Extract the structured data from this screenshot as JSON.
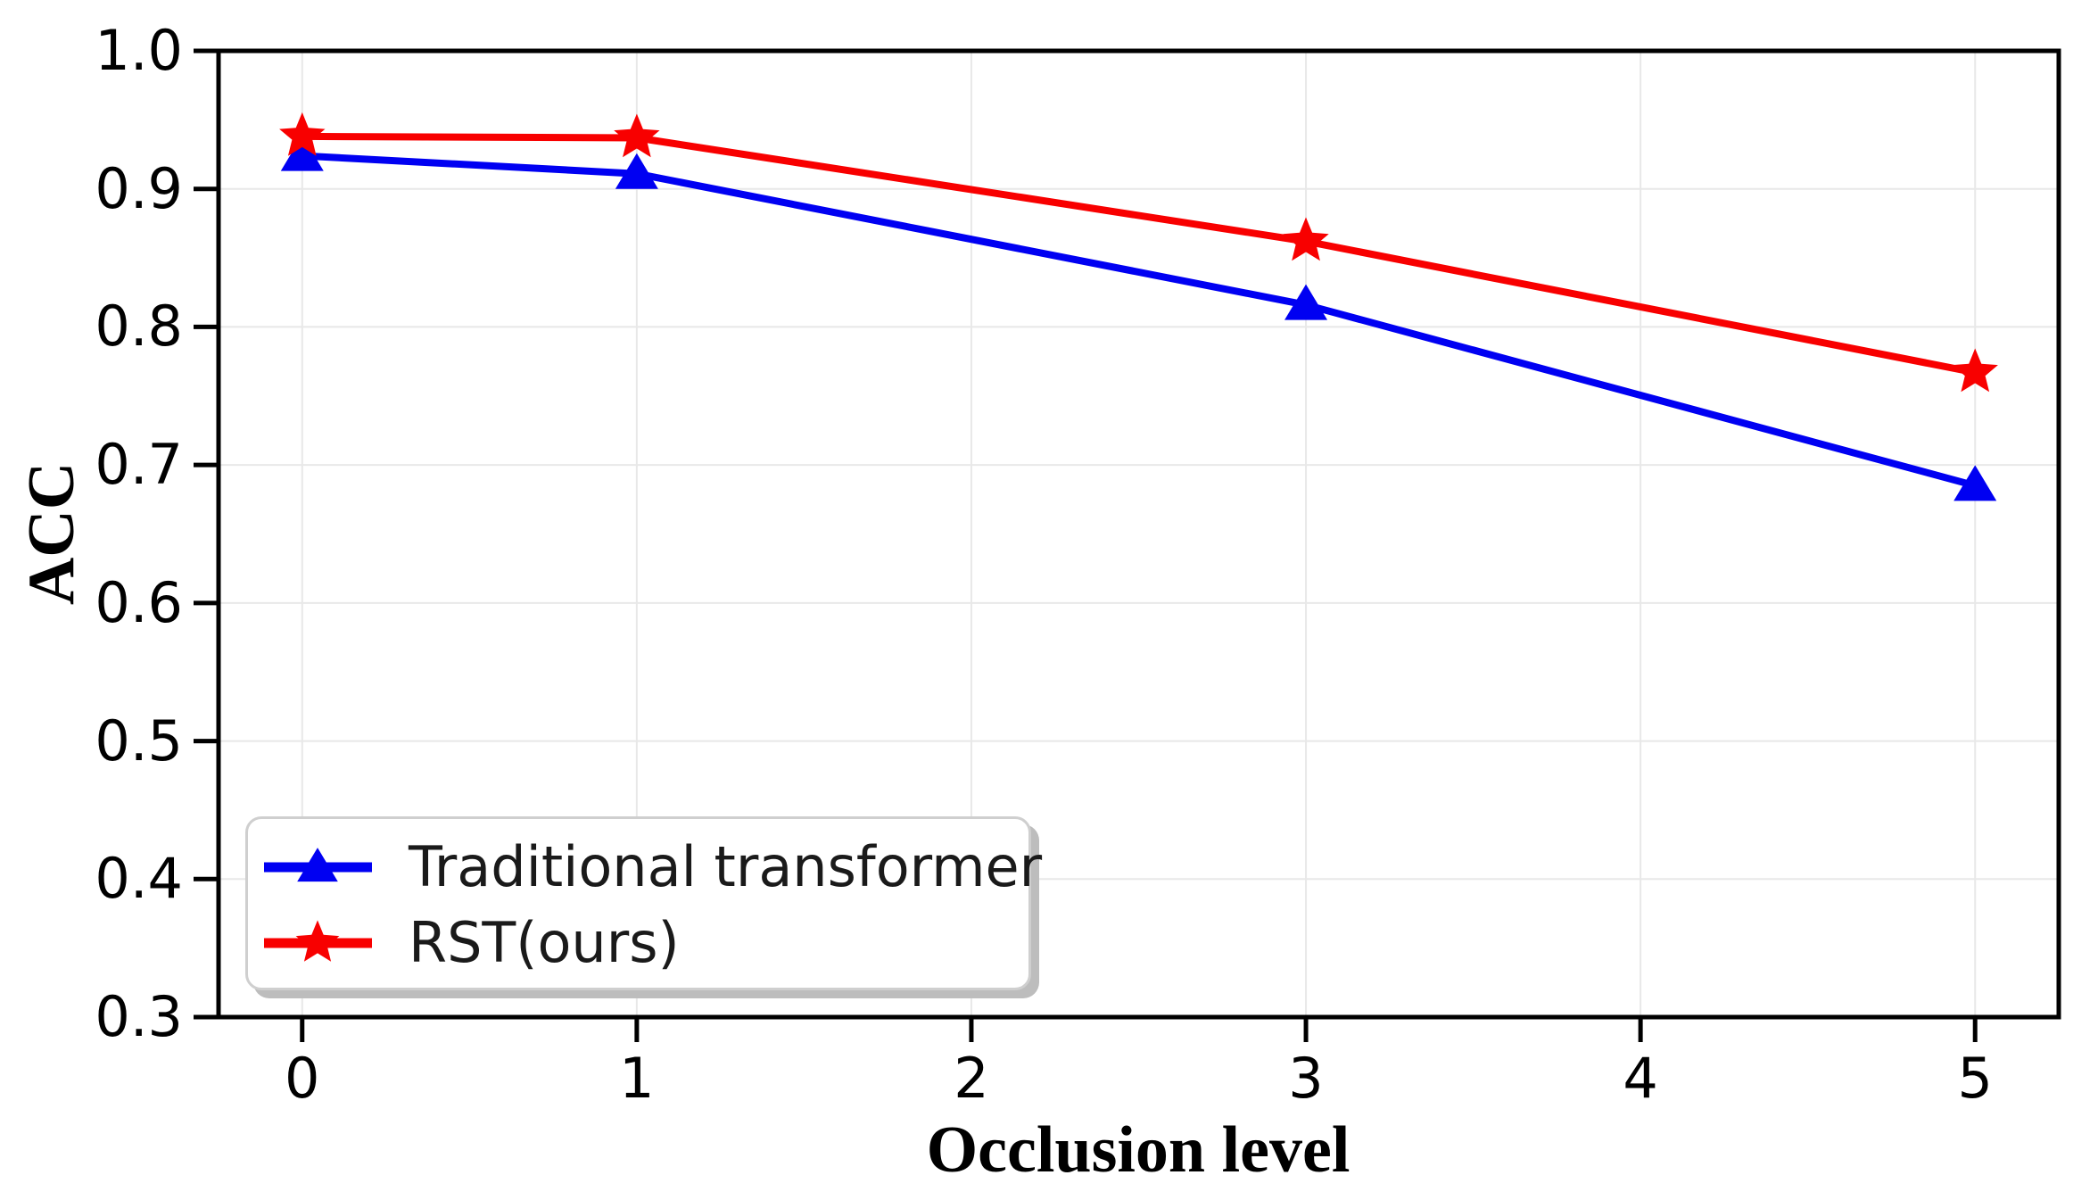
{
  "chart_data": {
    "type": "line",
    "title": "",
    "xlabel": "Occlusion level",
    "ylabel": "ACC",
    "x": [
      0,
      1,
      3,
      5
    ],
    "series": [
      {
        "name": "Traditional transformer",
        "color": "#0000f2",
        "marker": "triangle",
        "values": [
          0.924,
          0.911,
          0.816,
          0.685
        ]
      },
      {
        "name": "RST(ours)",
        "color": "#f80000",
        "marker": "star",
        "values": [
          0.938,
          0.937,
          0.862,
          0.767
        ]
      }
    ],
    "xlim": [
      -0.25,
      5.25
    ],
    "ylim": [
      0.3,
      1.0
    ],
    "x_ticks": [
      0,
      1,
      2,
      3,
      4,
      5
    ],
    "y_ticks": [
      1.0,
      0.9,
      0.8,
      0.7,
      0.6,
      0.5,
      0.4,
      0.3
    ],
    "grid": true,
    "legend_position": "lower-left"
  },
  "colors": {
    "background": "#ffffff",
    "axis": "#000000",
    "grid": "#e8e8e8",
    "tick_label": "#000000",
    "legend_border": "#cfcfcf",
    "legend_shadow": "#bdbdbd"
  }
}
